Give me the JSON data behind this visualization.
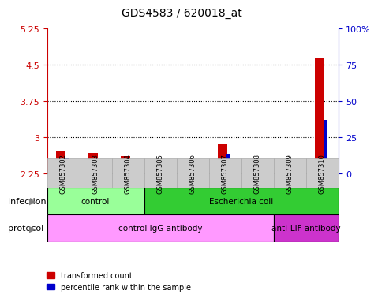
{
  "title": "GDS4583 / 620018_at",
  "samples": [
    "GSM857302",
    "GSM857303",
    "GSM857304",
    "GSM857305",
    "GSM857306",
    "GSM857307",
    "GSM857308",
    "GSM857309",
    "GSM857310"
  ],
  "transformed_counts": [
    2.72,
    2.68,
    2.62,
    2.55,
    2.54,
    2.88,
    2.52,
    2.5,
    4.65
  ],
  "percentile_ranks": [
    11,
    10,
    8,
    5,
    5,
    14,
    5,
    4,
    37
  ],
  "ylim_left": [
    2.25,
    5.25
  ],
  "ylim_right": [
    0,
    100
  ],
  "yticks_left": [
    2.25,
    3.0,
    3.75,
    4.5,
    5.25
  ],
  "yticks_right": [
    0,
    25,
    50,
    75,
    100
  ],
  "ytick_labels_left": [
    "2.25",
    "3",
    "3.75",
    "4.5",
    "5.25"
  ],
  "ytick_labels_right": [
    "0",
    "25",
    "50",
    "75",
    "100%"
  ],
  "hgrid_values": [
    3.0,
    3.75,
    4.5
  ],
  "bar_color_red": "#cc0000",
  "bar_color_blue": "#0000cc",
  "infection_groups": [
    {
      "label": "control",
      "samples": [
        0,
        1,
        2
      ],
      "color": "#99ff99"
    },
    {
      "label": "Escherichia coli",
      "samples": [
        3,
        4,
        5,
        6,
        7,
        8
      ],
      "color": "#33cc33"
    }
  ],
  "protocol_groups": [
    {
      "label": "control IgG antibody",
      "samples": [
        0,
        1,
        2,
        3,
        4,
        5,
        6
      ],
      "color": "#ff99ff"
    },
    {
      "label": "anti-LIF antibody",
      "samples": [
        7,
        8
      ],
      "color": "#cc33cc"
    }
  ],
  "legend_red_label": "transformed count",
  "legend_blue_label": "percentile rank within the sample",
  "background_color": "#e8e8e8",
  "plot_bg_color": "#ffffff",
  "xlabel_color": "#333333",
  "left_axis_color": "#cc0000",
  "right_axis_color": "#0000cc"
}
